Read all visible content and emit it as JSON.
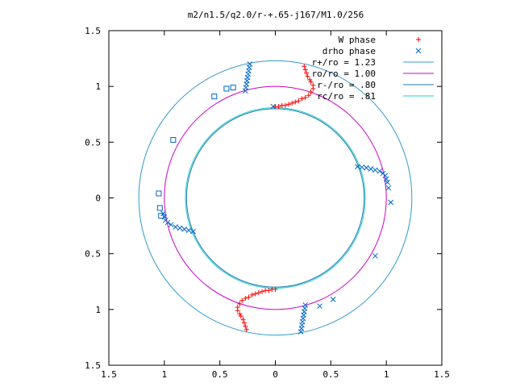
{
  "chart_data": {
    "type": "scatter",
    "title": "m2/n1.5/q2.0/r-+.65-j167/M1.0/256",
    "xlabel": "",
    "ylabel": "",
    "xlim": [
      -1.5,
      1.5
    ],
    "ylim": [
      -1.5,
      1.5
    ],
    "x_ticks": [
      -1.5,
      -1,
      -0.5,
      0,
      0.5,
      1,
      1.5
    ],
    "x_tick_labels": [
      "1.5",
      "1",
      "0.5",
      "0",
      "0.5",
      "1",
      "1.5"
    ],
    "y_ticks": [
      1.5,
      1,
      0.5,
      0,
      -0.5,
      -1,
      -1.5
    ],
    "y_tick_labels": [
      "1.5",
      "1",
      "0.5",
      "0",
      "0.5",
      "1",
      "1.5"
    ],
    "grid": false,
    "legend_position": "top-right",
    "legend": [
      {
        "label": "W phase",
        "marker": "plus",
        "color": "#ff0000"
      },
      {
        "label": "drho phase",
        "marker": "cross",
        "color": "#0066cc"
      },
      {
        "label": "r+/ro = 1.23",
        "line": true,
        "color": "#3399cc"
      },
      {
        "label": "ro/ro = 1.00",
        "line": true,
        "color": "#cc00cc"
      },
      {
        "label": "r-/ro = .80",
        "line": true,
        "color": "#1f7ab8"
      },
      {
        "label": "rc/ro = .81",
        "line": true,
        "color": "#22cccc"
      }
    ],
    "circles": [
      {
        "name": "r+/ro = 1.23",
        "radius": 1.23,
        "color": "#3399cc"
      },
      {
        "name": "ro/ro = 1.00",
        "radius": 1.0,
        "color": "#cc00cc"
      },
      {
        "name": "r-/ro = .80",
        "radius": 0.8,
        "color": "#1f7ab8"
      },
      {
        "name": "rc/ro = .81",
        "radius": 0.81,
        "color": "#22cccc"
      }
    ],
    "series": [
      {
        "name": "W phase",
        "marker": "plus",
        "color": "#ff0000",
        "points": [
          [
            0.0,
            0.82
          ],
          [
            0.03,
            0.82
          ],
          [
            0.06,
            0.83
          ],
          [
            0.09,
            0.83
          ],
          [
            0.12,
            0.84
          ],
          [
            0.15,
            0.85
          ],
          [
            0.18,
            0.86
          ],
          [
            0.21,
            0.87
          ],
          [
            0.24,
            0.89
          ],
          [
            0.27,
            0.9
          ],
          [
            0.3,
            0.92
          ],
          [
            0.32,
            0.95
          ],
          [
            0.34,
            0.98
          ],
          [
            0.34,
            1.01
          ],
          [
            0.32,
            1.04
          ],
          [
            0.31,
            1.06
          ],
          [
            0.29,
            1.09
          ],
          [
            0.28,
            1.12
          ],
          [
            0.27,
            1.15
          ],
          [
            0.26,
            1.18
          ],
          [
            0.0,
            -0.82
          ],
          [
            -0.03,
            -0.82
          ],
          [
            -0.06,
            -0.83
          ],
          [
            -0.09,
            -0.83
          ],
          [
            -0.12,
            -0.84
          ],
          [
            -0.15,
            -0.85
          ],
          [
            -0.18,
            -0.86
          ],
          [
            -0.21,
            -0.87
          ],
          [
            -0.24,
            -0.89
          ],
          [
            -0.27,
            -0.9
          ],
          [
            -0.3,
            -0.92
          ],
          [
            -0.32,
            -0.95
          ],
          [
            -0.34,
            -0.98
          ],
          [
            -0.34,
            -1.01
          ],
          [
            -0.32,
            -1.04
          ],
          [
            -0.31,
            -1.06
          ],
          [
            -0.29,
            -1.09
          ],
          [
            -0.28,
            -1.12
          ],
          [
            -0.27,
            -1.15
          ],
          [
            -0.26,
            -1.18
          ]
        ]
      },
      {
        "name": "drho phase",
        "marker": "cross",
        "color": "#0066cc",
        "points": [
          [
            -0.23,
            1.2
          ],
          [
            -0.235,
            1.17
          ],
          [
            -0.24,
            1.14
          ],
          [
            -0.245,
            1.11
          ],
          [
            -0.25,
            1.08
          ],
          [
            -0.255,
            1.05
          ],
          [
            -0.26,
            1.02
          ],
          [
            -0.265,
            0.99
          ],
          [
            -0.27,
            0.96
          ],
          [
            0.74,
            0.28
          ],
          [
            0.78,
            0.275
          ],
          [
            0.82,
            0.27
          ],
          [
            0.86,
            0.26
          ],
          [
            0.9,
            0.25
          ],
          [
            0.94,
            0.24
          ],
          [
            0.97,
            0.22
          ],
          [
            0.99,
            0.2
          ],
          [
            1.0,
            0.17
          ],
          [
            1.01,
            0.14
          ],
          [
            1.02,
            0.09
          ],
          [
            1.04,
            -0.04
          ],
          [
            0.9,
            -0.52
          ],
          [
            0.23,
            -1.2
          ],
          [
            0.235,
            -1.17
          ],
          [
            0.24,
            -1.14
          ],
          [
            0.245,
            -1.11
          ],
          [
            0.25,
            -1.08
          ],
          [
            0.255,
            -1.05
          ],
          [
            0.26,
            -1.02
          ],
          [
            0.265,
            -0.99
          ],
          [
            0.27,
            -0.96
          ],
          [
            0.4,
            -0.97
          ],
          [
            0.52,
            -0.91
          ],
          [
            -0.74,
            -0.3
          ],
          [
            -0.78,
            -0.29
          ],
          [
            -0.82,
            -0.28
          ],
          [
            -0.86,
            -0.27
          ],
          [
            -0.9,
            -0.26
          ],
          [
            -0.94,
            -0.24
          ],
          [
            -0.97,
            -0.22
          ],
          [
            -0.99,
            -0.2
          ],
          [
            -1.0,
            -0.17
          ],
          [
            -1.01,
            -0.14
          ],
          [
            -0.02,
            0.82
          ]
        ]
      },
      {
        "name": "",
        "marker": "square",
        "color": "#0066cc",
        "points": [
          [
            -0.44,
            0.98
          ],
          [
            -0.38,
            0.99
          ],
          [
            -0.55,
            0.91
          ],
          [
            -0.92,
            0.52
          ],
          [
            -1.05,
            0.04
          ],
          [
            -1.04,
            -0.09
          ],
          [
            -1.03,
            -0.16
          ]
        ]
      }
    ]
  }
}
